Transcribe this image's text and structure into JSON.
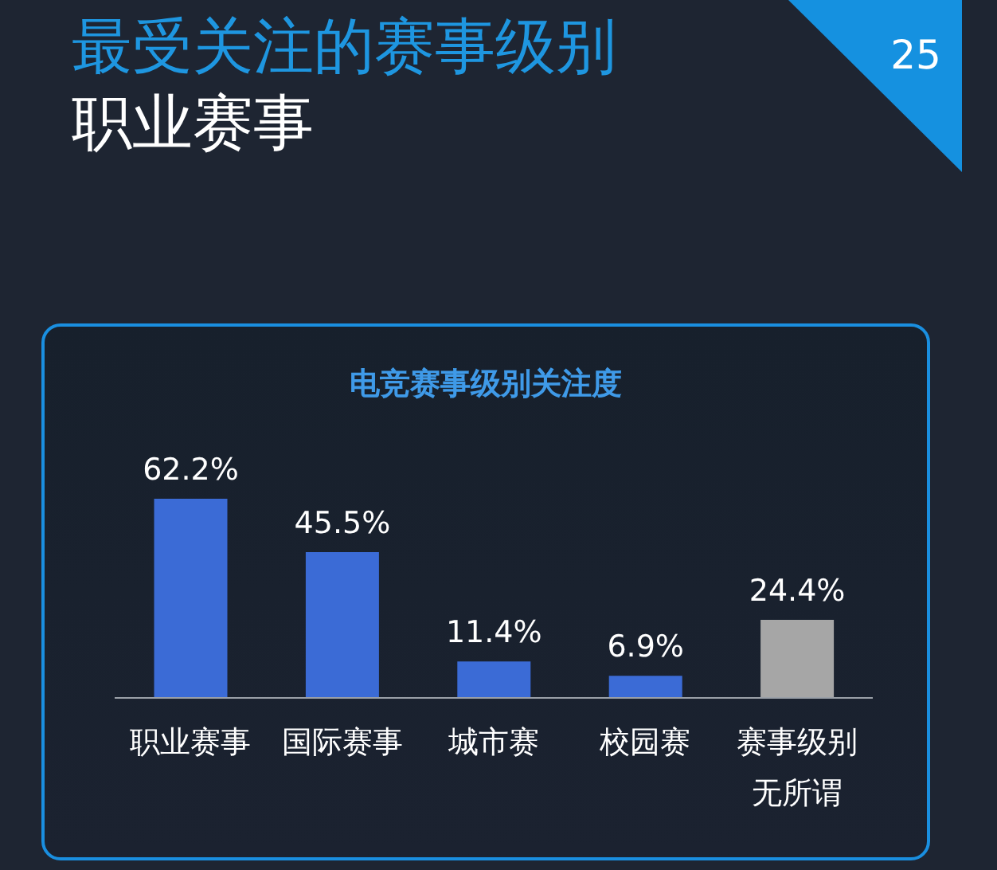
{
  "chart_data": {
    "type": "bar",
    "title": "最受关注的赛事级别",
    "subtitle": "职业赛事",
    "annotations": [
      "电竞赛事级别关注度",
      "25"
    ],
    "categories": [
      "职业赛事",
      "国际赛事",
      "城市赛",
      "校园赛",
      "赛事级别无所谓"
    ],
    "values": [
      62.2,
      45.5,
      11.4,
      6.9,
      24.4
    ],
    "value_labels": [
      "62.2%",
      "45.5%",
      "11.4%",
      "6.9%",
      "24.4%"
    ],
    "colors": [
      "#3b6bd6",
      "#3b6bd6",
      "#3b6bd6",
      "#3b6bd6",
      "#a6a6a6"
    ],
    "tick_labels": "x",
    "grid": false,
    "legend": false
  }
}
